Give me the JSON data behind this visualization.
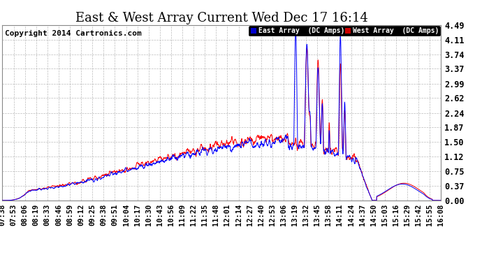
{
  "title": "East & West Array Current Wed Dec 17 16:14",
  "copyright": "Copyright 2014 Cartronics.com",
  "legend_east": "East Array  (DC Amps)",
  "legend_west": "West Array  (DC Amps)",
  "east_color": "#0000ff",
  "west_color": "#ff0000",
  "background_color": "#ffffff",
  "grid_color": "#aaaaaa",
  "plot_bg_color": "#ffffff",
  "ylim": [
    0.0,
    4.49
  ],
  "yticks": [
    0.0,
    0.37,
    0.75,
    1.12,
    1.5,
    1.87,
    2.24,
    2.62,
    2.99,
    3.37,
    3.74,
    4.11,
    4.49
  ],
  "x_labels": [
    "07:38",
    "07:53",
    "08:06",
    "08:19",
    "08:33",
    "08:46",
    "08:59",
    "09:12",
    "09:25",
    "09:38",
    "09:51",
    "10:04",
    "10:17",
    "10:30",
    "10:43",
    "10:56",
    "11:09",
    "11:22",
    "11:35",
    "11:48",
    "12:01",
    "12:14",
    "12:27",
    "12:40",
    "12:53",
    "13:06",
    "13:19",
    "13:32",
    "13:45",
    "13:58",
    "14:11",
    "14:24",
    "14:37",
    "14:50",
    "15:03",
    "15:16",
    "15:29",
    "15:42",
    "15:55",
    "16:08"
  ],
  "title_fontsize": 13,
  "tick_fontsize": 7.5,
  "copyright_fontsize": 8,
  "legend_east_bg": "#0000cc",
  "legend_west_bg": "#cc0000"
}
